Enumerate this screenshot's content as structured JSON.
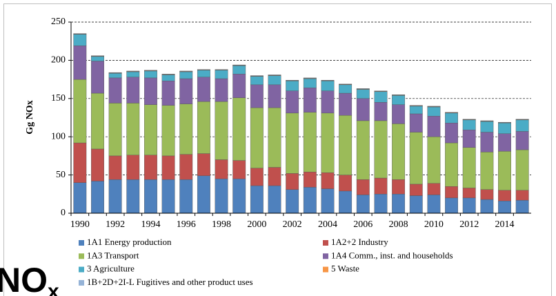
{
  "chart_data": {
    "type": "bar",
    "stacked": true,
    "ylabel": "Gg NOx",
    "annotation": {
      "text": "NO",
      "sub": "x"
    },
    "categories": [
      "1990",
      null,
      "1992",
      null,
      "1994",
      null,
      "1996",
      null,
      "1998",
      null,
      "2000",
      null,
      "2002",
      null,
      "2004",
      null,
      "2006",
      null,
      "2008",
      null,
      "2010",
      null,
      "2012",
      null,
      "2014",
      null
    ],
    "ylim": [
      0,
      250
    ],
    "yticks": [
      0,
      50,
      100,
      150,
      200,
      250
    ],
    "grid": true,
    "series": [
      {
        "name": "1A1 Energy production",
        "color": "#4f81bd",
        "values": [
          40,
          42,
          44,
          44,
          44,
          44,
          44,
          49,
          45,
          45,
          36,
          36,
          31,
          34,
          32,
          29,
          24,
          25,
          25,
          23,
          24,
          20,
          20,
          18,
          16,
          17
        ]
      },
      {
        "name": "1A2+2 Industry",
        "color": "#c0504d",
        "values": [
          52,
          42,
          31,
          32,
          32,
          31,
          33,
          29,
          25,
          24,
          23,
          24,
          21,
          20,
          21,
          21,
          20,
          21,
          19,
          15,
          15,
          15,
          13,
          13,
          14,
          13
        ]
      },
      {
        "name": "1A3 Transport",
        "color": "#9bbb59",
        "values": [
          83,
          73,
          69,
          68,
          66,
          66,
          66,
          68,
          76,
          82,
          79,
          78,
          79,
          78,
          78,
          78,
          77,
          75,
          73,
          68,
          61,
          57,
          53,
          49,
          51,
          53
        ]
      },
      {
        "name": "1A4 Comm., inst. and households",
        "color": "#8064a2",
        "values": [
          44,
          42,
          33,
          34,
          35,
          32,
          33,
          32,
          30,
          31,
          30,
          30,
          29,
          32,
          29,
          29,
          29,
          24,
          25,
          24,
          27,
          26,
          23,
          26,
          23,
          24
        ]
      },
      {
        "name": "3 Agriculture",
        "color": "#4bacc6",
        "values": [
          15,
          6,
          6,
          7,
          9,
          8,
          9,
          9,
          11,
          11,
          11,
          12,
          13,
          12,
          13,
          11,
          12,
          14,
          12,
          10,
          12,
          13,
          13,
          14,
          14,
          15
        ]
      },
      {
        "name": "5 Waste",
        "color": "#f79646",
        "values": [
          0.5,
          0.5,
          0.5,
          0.5,
          0.5,
          0.5,
          0.5,
          0.5,
          0.5,
          0.5,
          0.5,
          0.5,
          0.5,
          0.5,
          0.5,
          0.5,
          0.5,
          0.5,
          0.5,
          0.5,
          0.5,
          0.5,
          0.5,
          0.5,
          0.5,
          0.5
        ]
      },
      {
        "name": "1B+2D+2I-L Fugitives and other product uses",
        "color": "#95b3d7",
        "values": [
          0.5,
          0.5,
          0.5,
          0.5,
          0.5,
          0.5,
          0.5,
          0.5,
          0.5,
          0.5,
          0.5,
          0.5,
          0.5,
          0.5,
          0.5,
          0.5,
          0.5,
          0.5,
          0.5,
          0.5,
          0.5,
          0.5,
          0.5,
          0.5,
          0.5,
          0.5
        ]
      }
    ]
  }
}
